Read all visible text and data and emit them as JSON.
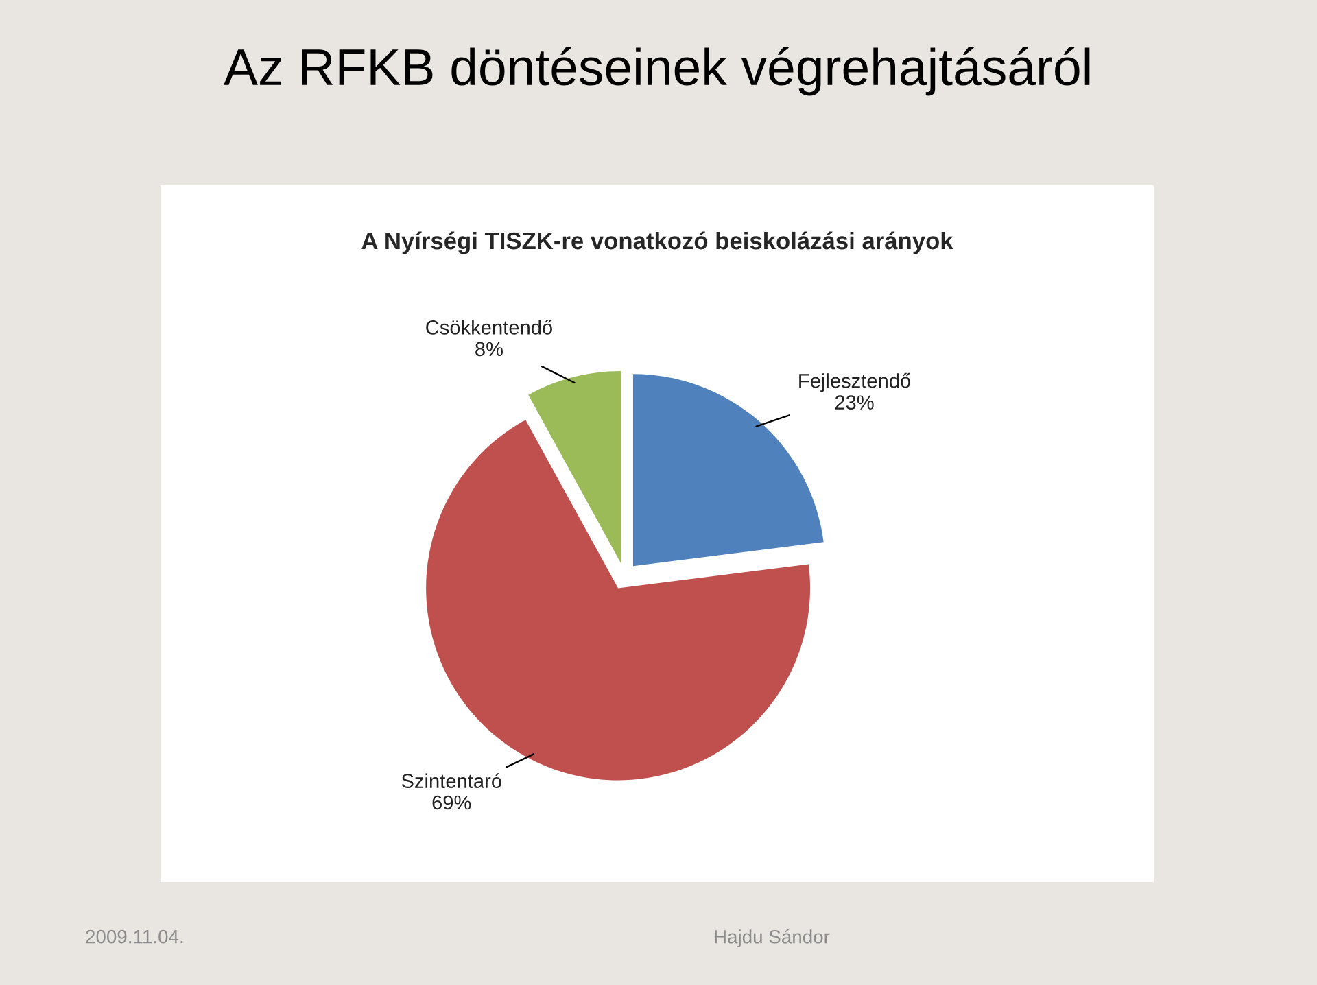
{
  "chart_data": {
    "type": "pie",
    "title": "Az RFKB döntéseinek végrehajtásáról",
    "subtitle": "A Nyírségi TISZK-re vonatkozó beiskolázási arányok",
    "categories": [
      "Fejlesztendő",
      "Szintentaró",
      "Csökkentendő"
    ],
    "values": [
      23,
      69,
      8
    ],
    "value_labels": [
      "23%",
      "69%",
      "8%"
    ],
    "colors": [
      "#4f81bd",
      "#c0504d",
      "#9bbb59"
    ],
    "annotations": [
      "2009.11.04.",
      "Hajdu Sándor"
    ]
  }
}
